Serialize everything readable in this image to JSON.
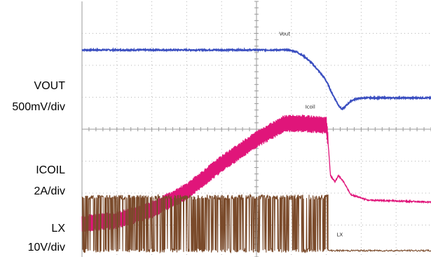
{
  "chart_data": {
    "type": "line",
    "title": "",
    "grid": true,
    "x_divisions": 10,
    "y_divisions": 8,
    "channels": [
      {
        "name": "VOUT",
        "scale": "500mV/div",
        "color": "#3a4ec0",
        "marker": "Vout",
        "points": [
          [
            0,
            6.48
          ],
          [
            5.9,
            6.48
          ],
          [
            6.15,
            6.42
          ],
          [
            6.4,
            6.25
          ],
          [
            6.6,
            6.05
          ],
          [
            6.8,
            5.8
          ],
          [
            6.95,
            5.6
          ],
          [
            7.05,
            5.4
          ],
          [
            7.15,
            5.15
          ],
          [
            7.25,
            4.95
          ],
          [
            7.35,
            4.75
          ],
          [
            7.45,
            4.62
          ],
          [
            7.55,
            4.72
          ],
          [
            7.7,
            4.88
          ],
          [
            7.85,
            4.95
          ],
          [
            8.1,
            4.98
          ],
          [
            10,
            4.98
          ]
        ]
      },
      {
        "name": "ICOIL",
        "scale": "2A/div",
        "color": "#e0157a",
        "marker": "Icoil",
        "points": [
          [
            0,
            1.05
          ],
          [
            1,
            1.15
          ],
          [
            2,
            1.48
          ],
          [
            3,
            2.05
          ],
          [
            4,
            2.92
          ],
          [
            5,
            3.68
          ],
          [
            5.8,
            4.18
          ],
          [
            6.3,
            4.18
          ],
          [
            7,
            4.12
          ],
          [
            7.05,
            3.6
          ],
          [
            7.12,
            2.55
          ],
          [
            7.25,
            2.35
          ],
          [
            7.35,
            2.55
          ],
          [
            7.5,
            2.35
          ],
          [
            7.7,
            1.95
          ],
          [
            8.2,
            1.78
          ],
          [
            10,
            1.72
          ]
        ],
        "ripple_amplitude_div": 0.55
      },
      {
        "name": "LX",
        "scale": "10V/div",
        "color": "#7a4a2a",
        "marker": "LX",
        "switching_until_div": 7.05,
        "low_level_div": 0.2,
        "high_level_div": 1.95
      }
    ]
  }
}
